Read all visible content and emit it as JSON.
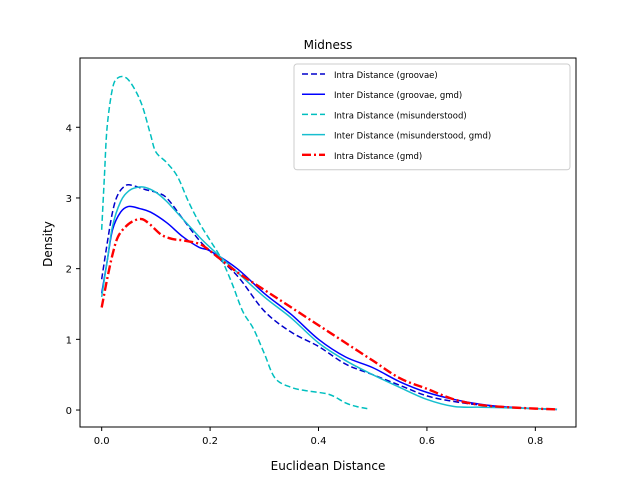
{
  "chart_data": {
    "type": "line",
    "title": "Midness",
    "xlabel": "Euclidean Distance",
    "ylabel": "Density",
    "xlim": [
      -0.04,
      0.875
    ],
    "ylim": [
      -0.24,
      4.98
    ],
    "xticks": [
      0.0,
      0.2,
      0.4,
      0.6,
      0.8
    ],
    "xtick_labels": [
      "0.0",
      "0.2",
      "0.4",
      "0.6",
      "0.8"
    ],
    "yticks": [
      0,
      1,
      2,
      3,
      4
    ],
    "ytick_labels": [
      "0",
      "1",
      "2",
      "3",
      "4"
    ],
    "grid": false,
    "legend_position": "top-right",
    "series": [
      {
        "name": "Intra Distance (groovae)",
        "color": "#0000cc",
        "style": "dashed",
        "x": [
          0.0,
          0.01,
          0.02,
          0.03,
          0.045,
          0.06,
          0.08,
          0.1,
          0.12,
          0.15,
          0.18,
          0.2,
          0.25,
          0.3,
          0.35,
          0.4,
          0.45,
          0.5,
          0.55,
          0.6,
          0.65,
          0.7,
          0.75,
          0.8,
          0.84
        ],
        "y": [
          1.85,
          2.35,
          2.8,
          3.05,
          3.18,
          3.17,
          3.12,
          3.08,
          3.0,
          2.7,
          2.4,
          2.25,
          1.9,
          1.4,
          1.1,
          0.9,
          0.65,
          0.5,
          0.35,
          0.2,
          0.12,
          0.07,
          0.04,
          0.02,
          0.01
        ]
      },
      {
        "name": "Inter Distance (groovae, gmd)",
        "color": "#0000ff",
        "style": "solid",
        "x": [
          0.0,
          0.01,
          0.02,
          0.035,
          0.05,
          0.07,
          0.09,
          0.12,
          0.15,
          0.18,
          0.2,
          0.25,
          0.3,
          0.35,
          0.4,
          0.45,
          0.5,
          0.55,
          0.6,
          0.65,
          0.7,
          0.75,
          0.8,
          0.84
        ],
        "y": [
          1.65,
          2.1,
          2.55,
          2.8,
          2.88,
          2.85,
          2.8,
          2.65,
          2.45,
          2.3,
          2.25,
          2.0,
          1.65,
          1.35,
          1.0,
          0.75,
          0.6,
          0.4,
          0.25,
          0.15,
          0.08,
          0.04,
          0.02,
          0.01
        ]
      },
      {
        "name": "Intra Distance (misunderstood)",
        "color": "#00bfbf",
        "style": "dashed",
        "x": [
          0.0,
          0.005,
          0.01,
          0.02,
          0.03,
          0.045,
          0.06,
          0.075,
          0.09,
          0.1,
          0.12,
          0.14,
          0.16,
          0.18,
          0.2,
          0.22,
          0.24,
          0.26,
          0.28,
          0.3,
          0.32,
          0.35,
          0.38,
          0.42,
          0.45,
          0.47,
          0.49
        ],
        "y": [
          2.55,
          3.3,
          4.0,
          4.55,
          4.7,
          4.7,
          4.55,
          4.3,
          3.9,
          3.65,
          3.5,
          3.3,
          2.95,
          2.65,
          2.4,
          2.15,
          1.8,
          1.4,
          1.15,
          0.8,
          0.45,
          0.32,
          0.27,
          0.22,
          0.1,
          0.05,
          0.02
        ]
      },
      {
        "name": "Inter Distance (misunderstood, gmd)",
        "color": "#17becf",
        "style": "solid",
        "x": [
          0.0,
          0.01,
          0.02,
          0.035,
          0.05,
          0.065,
          0.08,
          0.1,
          0.12,
          0.15,
          0.18,
          0.2,
          0.25,
          0.3,
          0.35,
          0.4,
          0.45,
          0.5,
          0.55,
          0.6,
          0.65,
          0.7,
          0.75,
          0.8,
          0.84
        ],
        "y": [
          1.6,
          2.1,
          2.6,
          2.95,
          3.1,
          3.15,
          3.15,
          3.08,
          2.95,
          2.7,
          2.45,
          2.3,
          1.95,
          1.6,
          1.3,
          0.95,
          0.7,
          0.5,
          0.32,
          0.15,
          0.05,
          0.04,
          0.03,
          0.02,
          0.01
        ]
      },
      {
        "name": "Intra Distance (gmd)",
        "color": "#ff0000",
        "style": "dashdot",
        "x": [
          0.0,
          0.01,
          0.02,
          0.03,
          0.045,
          0.06,
          0.075,
          0.09,
          0.11,
          0.13,
          0.15,
          0.18,
          0.2,
          0.25,
          0.3,
          0.35,
          0.4,
          0.45,
          0.5,
          0.55,
          0.6,
          0.65,
          0.7,
          0.75,
          0.8,
          0.84
        ],
        "y": [
          1.45,
          1.85,
          2.2,
          2.45,
          2.6,
          2.68,
          2.7,
          2.62,
          2.48,
          2.42,
          2.4,
          2.35,
          2.25,
          1.95,
          1.7,
          1.45,
          1.2,
          0.95,
          0.7,
          0.45,
          0.3,
          0.15,
          0.07,
          0.04,
          0.02,
          0.01
        ]
      }
    ]
  }
}
